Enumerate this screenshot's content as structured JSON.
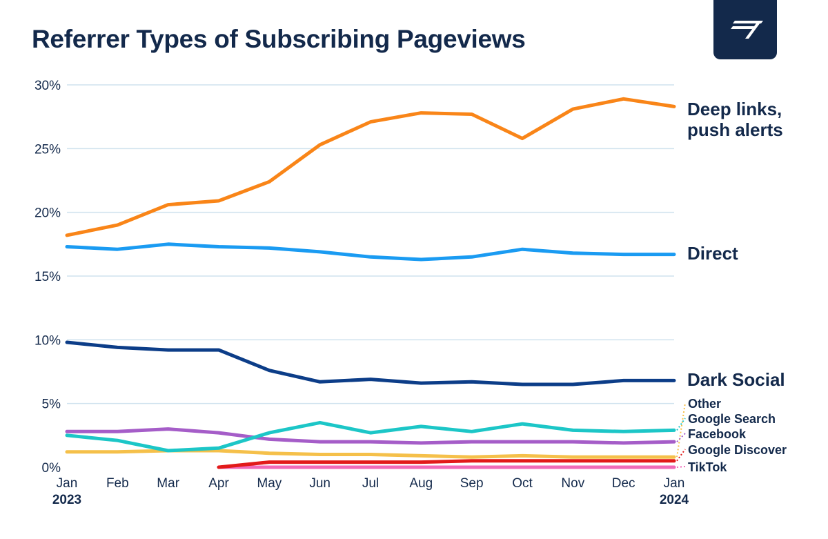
{
  "title": "Referrer Types of Subscribing Pageviews",
  "logo": {
    "icon": "brand-logo-icon",
    "background": "#13294b"
  },
  "chart_data": {
    "type": "line",
    "title": "Referrer Types of Subscribing Pageviews",
    "x": [
      "Jan",
      "Feb",
      "Mar",
      "Apr",
      "May",
      "Jun",
      "Jul",
      "Aug",
      "Sep",
      "Oct",
      "Nov",
      "Dec",
      "Jan"
    ],
    "x_year_labels": {
      "start": "2023",
      "end": "2024"
    },
    "y_ticks": [
      "30%",
      "25%",
      "20%",
      "15%",
      "10%",
      "5%",
      "0%"
    ],
    "ylim": [
      0,
      30
    ],
    "grid": true,
    "legend": "direct labels at right end of lines",
    "series": [
      {
        "name": "Deep links, push alerts",
        "color": "#f98518",
        "values": [
          18.2,
          19.0,
          20.6,
          20.9,
          22.4,
          25.3,
          27.1,
          27.8,
          27.7,
          25.8,
          28.1,
          28.9,
          28.3
        ]
      },
      {
        "name": "Direct",
        "color": "#1a9bf2",
        "values": [
          17.3,
          17.1,
          17.5,
          17.3,
          17.2,
          16.9,
          16.5,
          16.3,
          16.5,
          17.1,
          16.8,
          16.7,
          16.7
        ]
      },
      {
        "name": "Dark Social",
        "color": "#0c3d88",
        "values": [
          9.8,
          9.4,
          9.2,
          9.2,
          7.6,
          6.7,
          6.9,
          6.6,
          6.7,
          6.5,
          6.5,
          6.8,
          6.8
        ]
      },
      {
        "name": "Other",
        "color": "#f5c04a",
        "values": [
          1.2,
          1.2,
          1.3,
          1.3,
          1.1,
          1.0,
          1.0,
          0.9,
          0.8,
          0.9,
          0.8,
          0.8,
          0.8
        ]
      },
      {
        "name": "Google Search",
        "color": "#1cc6c7",
        "values": [
          2.5,
          2.1,
          1.3,
          1.5,
          2.7,
          3.5,
          2.7,
          3.2,
          2.8,
          3.4,
          2.9,
          2.8,
          2.9
        ]
      },
      {
        "name": "Facebook",
        "color": "#a55dc8",
        "values": [
          2.8,
          2.8,
          3.0,
          2.7,
          2.2,
          2.0,
          2.0,
          1.9,
          2.0,
          2.0,
          2.0,
          1.9,
          2.0
        ]
      },
      {
        "name": "Google Discover",
        "color": "#e21a1a",
        "values": [
          null,
          null,
          null,
          0.0,
          0.4,
          0.4,
          0.4,
          0.4,
          0.5,
          0.5,
          0.5,
          0.5,
          0.5
        ]
      },
      {
        "name": "TikTok",
        "color": "#f06ab9",
        "values": [
          null,
          null,
          null,
          0.0,
          0.0,
          0.0,
          0.0,
          0.0,
          0.0,
          0.0,
          0.0,
          0.0,
          0.0
        ]
      }
    ]
  }
}
